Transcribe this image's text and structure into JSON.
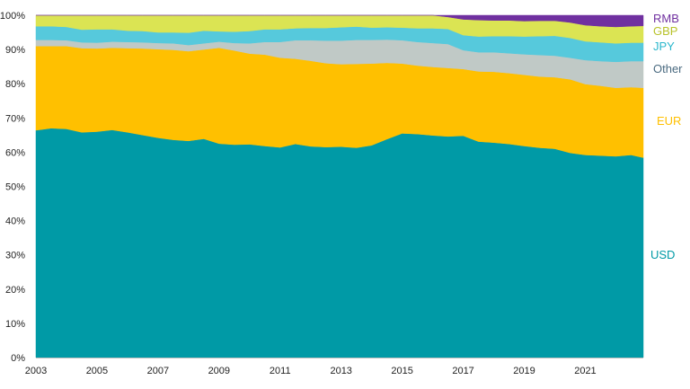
{
  "chart_data": {
    "type": "area",
    "stacked": true,
    "x": [
      2003.0,
      2003.5,
      2004.0,
      2004.5,
      2005.0,
      2005.5,
      2006.0,
      2006.5,
      2007.0,
      2007.5,
      2008.0,
      2008.5,
      2009.0,
      2009.5,
      2010.0,
      2010.5,
      2011.0,
      2011.5,
      2012.0,
      2012.5,
      2013.0,
      2013.5,
      2014.0,
      2014.5,
      2015.0,
      2015.5,
      2016.0,
      2016.5,
      2017.0,
      2017.5,
      2018.0,
      2018.5,
      2019.0,
      2019.5,
      2020.0,
      2020.5,
      2021.0,
      2021.5,
      2022.0,
      2022.5,
      2022.9
    ],
    "ylim": [
      0,
      100
    ],
    "y_ticks": [
      "0%",
      "10%",
      "20%",
      "30%",
      "40%",
      "50%",
      "60%",
      "70%",
      "80%",
      "90%",
      "100%"
    ],
    "x_ticks": [
      "2003",
      "2005",
      "2007",
      "2009",
      "2011",
      "2013",
      "2015",
      "2017",
      "2019",
      "2021"
    ],
    "series": [
      {
        "name": "USD",
        "color": "#009aa6",
        "values": [
          66.4,
          67.0,
          66.8,
          65.8,
          66.0,
          66.5,
          65.8,
          65.0,
          64.2,
          63.6,
          63.3,
          63.9,
          62.5,
          62.2,
          62.3,
          61.8,
          61.4,
          62.4,
          61.7,
          61.5,
          61.6,
          61.3,
          62.0,
          63.8,
          65.5,
          65.3,
          64.9,
          64.6,
          64.8,
          63.1,
          62.8,
          62.4,
          61.8,
          61.3,
          61.0,
          59.8,
          59.2,
          59.0,
          58.8,
          59.2,
          58.4
        ]
      },
      {
        "name": "EUR",
        "color": "#ffc000",
        "values": [
          24.6,
          24.0,
          24.2,
          24.6,
          24.3,
          24.0,
          24.6,
          25.3,
          25.9,
          26.3,
          26.2,
          26.1,
          28.0,
          27.5,
          26.5,
          26.7,
          26.2,
          24.9,
          25.0,
          24.5,
          24.1,
          24.5,
          23.9,
          22.3,
          20.4,
          20.0,
          20.0,
          20.0,
          19.5,
          20.5,
          20.7,
          20.7,
          20.8,
          20.8,
          20.9,
          21.5,
          20.7,
          20.4,
          20.0,
          19.8,
          20.4
        ]
      },
      {
        "name": "Other",
        "color": "#c0c9c6",
        "values": [
          1.8,
          1.8,
          1.7,
          1.7,
          1.7,
          1.8,
          1.8,
          1.8,
          1.8,
          1.9,
          1.8,
          1.8,
          1.8,
          2.2,
          3.0,
          3.7,
          4.6,
          5.4,
          6.0,
          6.6,
          6.9,
          7.0,
          6.9,
          6.8,
          6.8,
          6.9,
          7.0,
          7.0,
          5.5,
          5.6,
          5.7,
          5.8,
          6.0,
          6.3,
          6.3,
          6.3,
          7.0,
          7.2,
          7.6,
          7.6,
          7.8
        ]
      },
      {
        "name": "JPY",
        "color": "#56c9dc",
        "values": [
          4.0,
          4.0,
          3.9,
          3.7,
          3.9,
          3.6,
          3.3,
          3.3,
          3.1,
          3.2,
          3.6,
          3.7,
          3.0,
          3.3,
          3.6,
          3.7,
          3.7,
          3.5,
          3.6,
          3.7,
          3.9,
          3.9,
          3.6,
          3.6,
          3.7,
          4.0,
          4.3,
          4.4,
          4.4,
          4.6,
          4.7,
          5.0,
          5.2,
          5.5,
          5.8,
          5.8,
          5.5,
          5.5,
          5.4,
          5.4,
          5.4
        ]
      },
      {
        "name": "GBP",
        "color": "#dbe453",
        "values": [
          3.2,
          3.2,
          3.4,
          4.2,
          4.1,
          4.1,
          4.5,
          4.6,
          5.0,
          5.0,
          5.1,
          4.5,
          4.7,
          4.8,
          4.6,
          4.1,
          4.1,
          3.8,
          3.7,
          3.7,
          3.5,
          3.3,
          3.6,
          3.5,
          3.6,
          3.8,
          3.8,
          3.5,
          4.6,
          4.8,
          4.6,
          4.6,
          4.5,
          4.5,
          4.4,
          4.5,
          4.7,
          4.7,
          4.8,
          4.8,
          4.9
        ]
      },
      {
        "name": "RMB",
        "color": "#7030a0",
        "values": [
          0,
          0,
          0,
          0,
          0,
          0,
          0,
          0,
          0,
          0,
          0,
          0,
          0,
          0,
          0,
          0,
          0,
          0,
          0,
          0,
          0,
          0,
          0,
          0,
          0,
          0,
          0,
          0.5,
          1.2,
          1.4,
          1.5,
          1.5,
          1.7,
          1.6,
          1.6,
          2.1,
          2.9,
          3.2,
          3.4,
          3.2,
          3.1
        ]
      }
    ],
    "legend_placement": "right",
    "grid": false
  }
}
